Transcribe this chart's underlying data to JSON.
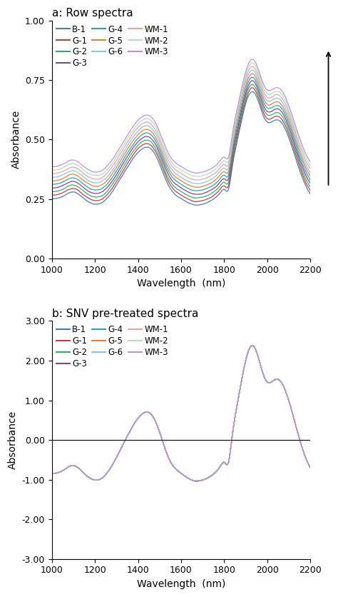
{
  "title_a": "a: Row spectra",
  "title_b": "b: SNV pre-treated spectra",
  "xlabel": "Wavelength  (nm)",
  "ylabel": "Absorbance",
  "xlim": [
    1000,
    2200
  ],
  "ylim_a": [
    0.0,
    1.0
  ],
  "ylim_b": [
    -3.0,
    3.0
  ],
  "yticks_a": [
    0.0,
    0.25,
    0.5,
    0.75,
    1.0
  ],
  "yticks_b": [
    -3.0,
    -2.0,
    -1.0,
    0.0,
    1.0,
    2.0,
    3.0
  ],
  "series": [
    {
      "name": "B-1",
      "color": "#4472C4"
    },
    {
      "name": "G-1",
      "color": "#C0392B"
    },
    {
      "name": "G-2",
      "color": "#27AE60"
    },
    {
      "name": "G-3",
      "color": "#7D3C98"
    },
    {
      "name": "G-4",
      "color": "#1A9FC0"
    },
    {
      "name": "G-5",
      "color": "#E67E22"
    },
    {
      "name": "G-6",
      "color": "#85C1E9"
    },
    {
      "name": "WM-1",
      "color": "#E8A0A0"
    },
    {
      "name": "WM-2",
      "color": "#A9DFBF"
    },
    {
      "name": "WM-3",
      "color": "#BB8FCE"
    }
  ],
  "legend_order": [
    "B-1",
    "G-1",
    "G-2",
    "G-3",
    "G-4",
    "G-5",
    "G-6",
    "WM-1",
    "WM-2",
    "WM-3"
  ],
  "offsets_a": [
    0.0,
    0.015,
    0.03,
    0.045,
    0.06,
    0.075,
    0.09,
    0.105,
    0.12,
    0.135
  ]
}
